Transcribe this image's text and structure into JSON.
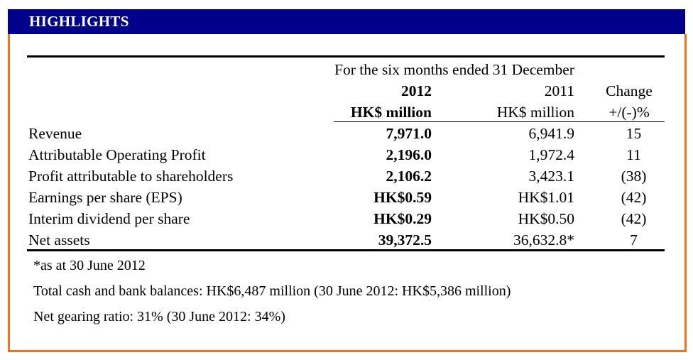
{
  "header": {
    "title": "HIGHLIGHTS"
  },
  "table": {
    "period": "For the six months ended 31 December",
    "columns": [
      {
        "year": "2012",
        "unit": "HK$ million"
      },
      {
        "year": "2011",
        "unit": "HK$ million"
      },
      {
        "year": "Change",
        "unit": "+/(-)%"
      }
    ],
    "rows": [
      {
        "label": "Revenue",
        "v2012": "7,971.0",
        "v2011": "6,941.9",
        "change": "15"
      },
      {
        "label": "Attributable Operating Profit",
        "v2012": "2,196.0",
        "v2011": "1,972.4",
        "change": "11"
      },
      {
        "label": "Profit attributable to shareholders",
        "v2012": "2,106.2",
        "v2011": "3,423.1",
        "change": "(38)"
      },
      {
        "label": "Earnings per share (EPS)",
        "v2012": "HK$0.59",
        "v2011": "HK$1.01",
        "change": "(42)"
      },
      {
        "label": "Interim dividend per share",
        "v2012": "HK$0.29",
        "v2011": "HK$0.50",
        "change": "(42)"
      },
      {
        "label": "Net assets",
        "v2012": "39,372.5",
        "v2011": "36,632.8*",
        "change": "7"
      }
    ]
  },
  "notes": {
    "footnote": "*as at 30 June 2012",
    "cash": "Total cash and bank balances: HK$6,487 million (30 June 2012: HK$5,386 million)",
    "gearing": "Net gearing ratio: 31% (30 June 2012: 34%)"
  },
  "colors": {
    "header_bg": "#00008b",
    "frame": "#f37021"
  }
}
